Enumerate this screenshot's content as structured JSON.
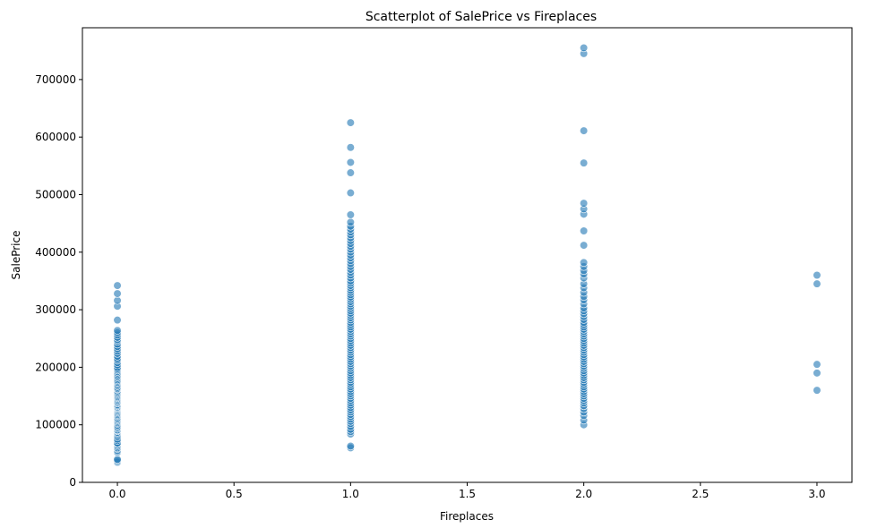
{
  "chart_data": {
    "type": "scatter",
    "title": "Scatterplot of SalePrice vs Fireplaces",
    "xlabel": "Fireplaces",
    "ylabel": "SalePrice",
    "xlim": [
      -0.15,
      3.15
    ],
    "ylim": [
      0,
      790000
    ],
    "xticks": [
      0.0,
      0.5,
      1.0,
      1.5,
      2.0,
      2.5,
      3.0
    ],
    "xtick_labels": [
      "0.0",
      "0.5",
      "1.0",
      "1.5",
      "2.0",
      "2.5",
      "3.0"
    ],
    "yticks": [
      0,
      100000,
      200000,
      300000,
      400000,
      500000,
      600000,
      700000
    ],
    "ytick_labels": [
      "0",
      "100000",
      "200000",
      "300000",
      "400000",
      "500000",
      "600000",
      "700000"
    ],
    "grid": false,
    "point_color": "#1f77b4",
    "point_opacity": 0.6,
    "series": [
      {
        "x": 0,
        "y": [
          34900,
          37900,
          40000,
          52000,
          55000,
          58500,
          60000,
          62383,
          64500,
          67000,
          68500,
          72500,
          75000,
          79000,
          82000,
          85000,
          87000,
          89500,
          91000,
          93500,
          95000,
          97000,
          99500,
          102000,
          104000,
          106000,
          108000,
          110000,
          112000,
          114500,
          116000,
          118000,
          120000,
          122000,
          124000,
          126000,
          128000,
          129500,
          131000,
          133000,
          135000,
          137500,
          139000,
          141000,
          143000,
          145000,
          147000,
          149000,
          151000,
          153000,
          155000,
          157000,
          159000,
          161500,
          163000,
          165000,
          167500,
          169500,
          172000,
          174000,
          176000,
          178000,
          180500,
          183000,
          185000,
          187500,
          190000,
          192500,
          195000,
          197500,
          200000,
          204000,
          208000,
          212000,
          215000,
          219000,
          224000,
          228000,
          232000,
          236000,
          240000,
          245000,
          248000,
          252000,
          256000,
          260000,
          264000,
          282000,
          306000,
          316000,
          328000,
          342000
        ]
      },
      {
        "x": 1,
        "y": [
          60000,
          63000,
          84000,
          88000,
          92000,
          97000,
          102000,
          106000,
          110000,
          114000,
          118000,
          122000,
          126000,
          130000,
          134000,
          138000,
          142000,
          146000,
          150000,
          154000,
          158000,
          162000,
          166000,
          170000,
          174000,
          178000,
          182000,
          186000,
          190000,
          194000,
          198000,
          202000,
          206000,
          210000,
          214000,
          218000,
          222000,
          226000,
          230000,
          234000,
          238000,
          242000,
          246000,
          250000,
          254000,
          258000,
          262000,
          266000,
          270000,
          274000,
          278000,
          282000,
          286000,
          290000,
          294000,
          298000,
          302000,
          306000,
          310000,
          314000,
          318000,
          322000,
          326000,
          330000,
          334000,
          338000,
          342000,
          346000,
          350000,
          355000,
          360000,
          365000,
          370000,
          375000,
          380000,
          385000,
          390000,
          395000,
          400000,
          405000,
          410000,
          415000,
          420000,
          425000,
          430000,
          435000,
          440000,
          445000,
          452000,
          465000,
          503000,
          538000,
          556000,
          582000,
          625000
        ]
      },
      {
        "x": 2,
        "y": [
          100000,
          108000,
          116000,
          122000,
          128000,
          133000,
          138000,
          142000,
          146000,
          150000,
          154000,
          158000,
          162000,
          166000,
          170000,
          174000,
          178000,
          182000,
          186000,
          190000,
          194000,
          198000,
          202000,
          206000,
          210000,
          214000,
          218000,
          222000,
          226000,
          230000,
          234000,
          238000,
          242000,
          246000,
          250000,
          254000,
          258000,
          262000,
          266000,
          270000,
          274000,
          278000,
          283000,
          288000,
          293000,
          298000,
          303000,
          310000,
          317000,
          323000,
          330000,
          338000,
          345000,
          355000,
          362000,
          368000,
          375000,
          382000,
          412000,
          437000,
          466000,
          475000,
          485000,
          555000,
          611000,
          745000,
          755000
        ]
      },
      {
        "x": 3,
        "y": [
          160000,
          190000,
          205000,
          345000,
          360000
        ]
      }
    ]
  }
}
